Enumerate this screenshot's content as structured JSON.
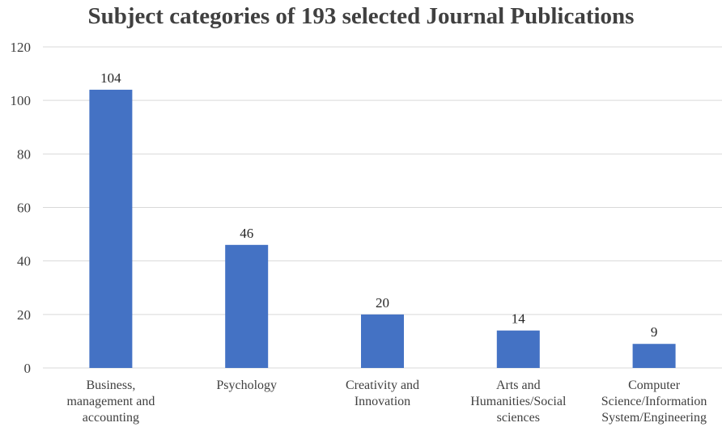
{
  "chart_data": {
    "type": "bar",
    "title": "Subject categories of 193 selected Journal Publications",
    "categories": [
      [
        "Business,",
        "management and",
        "accounting"
      ],
      [
        "Psychology"
      ],
      [
        "Creativity and",
        "Innovation"
      ],
      [
        "Arts and",
        "Humanities/Social",
        "sciences"
      ],
      [
        "Computer",
        "Science/Information",
        "System/Engineering"
      ]
    ],
    "values": [
      104,
      46,
      20,
      14,
      9
    ],
    "ylim": [
      0,
      120
    ],
    "yticks": [
      0,
      20,
      40,
      60,
      80,
      100,
      120
    ],
    "grid": true,
    "bar_color": "#4472C4",
    "grid_color": "#d9d9d9"
  }
}
